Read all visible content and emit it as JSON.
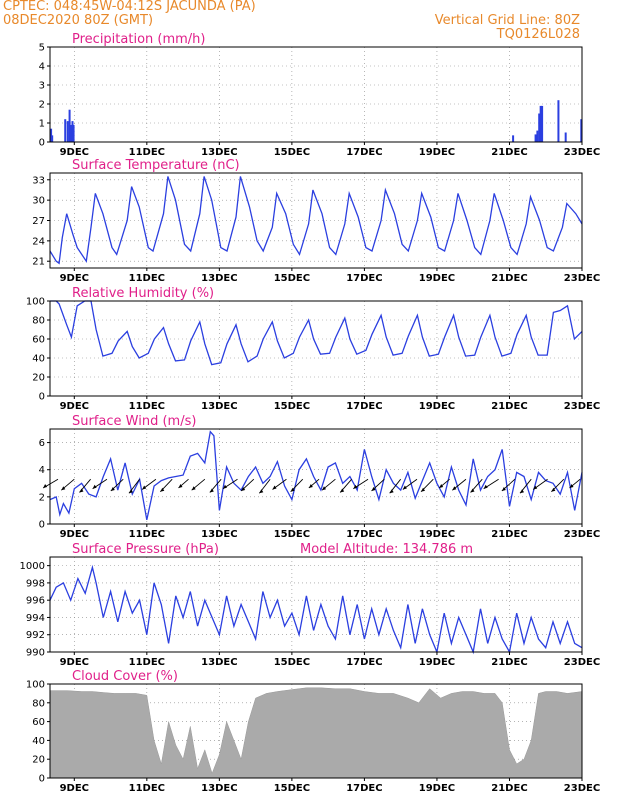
{
  "header": {
    "line1_left": "CPTEC:   048:45W-04:12S   JACUNDA (PA)",
    "line2_left": "08DEC2020 80Z (GMT)",
    "line2_right": "Vertical Grid Line: 80Z",
    "line3_right": "TQ0126L028"
  },
  "colors": {
    "header": "#e8892b",
    "title": "#e0208a",
    "series": "#2b3fe0",
    "cloud": "#aaaaaa",
    "grid": "#888888"
  },
  "x_axis": {
    "tick_labels": [
      "9DEC",
      "11DEC",
      "13DEC",
      "15DEC",
      "17DEC",
      "19DEC",
      "21DEC",
      "23DEC"
    ],
    "day_start": 8.33,
    "day_end": 23.0
  },
  "chart_data": [
    {
      "type": "bar",
      "title": "Precipitation (mm/h)",
      "ylim": [
        0,
        5
      ],
      "yticks": [
        0,
        1,
        2,
        3,
        4,
        5
      ],
      "series": [
        {
          "x": [
            8.36,
            8.39,
            8.75,
            8.82,
            8.87,
            8.9,
            8.95,
            8.98,
            21.1,
            21.72,
            21.77,
            21.82,
            21.86,
            21.9,
            22.35,
            22.55,
            22.98
          ],
          "values": [
            0.7,
            0.35,
            1.2,
            1.1,
            1.7,
            0.9,
            1.1,
            0.9,
            0.35,
            0.4,
            0.6,
            1.5,
            1.9,
            1.9,
            2.2,
            0.5,
            1.2
          ]
        }
      ]
    },
    {
      "type": "line",
      "title": "Surface Temperature (nC)",
      "ylim": [
        20,
        34
      ],
      "yticks": [
        21,
        24,
        27,
        30,
        33
      ],
      "series": [
        {
          "x": [
            8.33,
            8.5,
            8.58,
            8.67,
            8.79,
            8.96,
            9.08,
            9.33,
            9.46,
            9.58,
            9.79,
            10.04,
            10.17,
            10.46,
            10.58,
            10.79,
            11.04,
            11.17,
            11.46,
            11.58,
            11.79,
            12.04,
            12.21,
            12.46,
            12.58,
            12.79,
            13.04,
            13.21,
            13.46,
            13.58,
            13.83,
            14.04,
            14.21,
            14.46,
            14.58,
            14.83,
            15.04,
            15.21,
            15.46,
            15.58,
            15.83,
            16.04,
            16.21,
            16.46,
            16.58,
            16.83,
            17.04,
            17.21,
            17.46,
            17.58,
            17.83,
            18.04,
            18.21,
            18.46,
            18.58,
            18.83,
            19.04,
            19.21,
            19.46,
            19.58,
            19.83,
            20.04,
            20.21,
            20.46,
            20.58,
            20.83,
            21.04,
            21.21,
            21.46,
            21.58,
            21.83,
            22.04,
            22.21,
            22.46,
            22.58,
            22.83,
            23.0
          ],
          "values": [
            22.5,
            21.0,
            20.7,
            24.5,
            28.0,
            25.0,
            23.0,
            21.0,
            26.0,
            31.0,
            28.0,
            23.0,
            22.0,
            27.0,
            32.0,
            29.0,
            23.0,
            22.5,
            28.0,
            33.5,
            30.0,
            23.5,
            22.5,
            28.0,
            33.5,
            30.0,
            23.0,
            22.5,
            27.5,
            33.5,
            29.0,
            24.0,
            22.5,
            26.0,
            31.0,
            28.0,
            23.5,
            22.0,
            26.5,
            31.5,
            28.0,
            23.0,
            22.0,
            26.5,
            31.0,
            27.5,
            23.0,
            22.5,
            27.0,
            31.5,
            28.0,
            23.5,
            22.5,
            27.0,
            31.0,
            27.5,
            23.0,
            22.5,
            27.0,
            31.0,
            27.0,
            23.0,
            22.0,
            27.0,
            31.0,
            27.0,
            23.0,
            22.0,
            26.5,
            30.5,
            27.0,
            23.0,
            22.5,
            26.0,
            29.5,
            28.0,
            26.5
          ]
        }
      ]
    },
    {
      "type": "line",
      "title": "Relative Humidity (%)",
      "ylim": [
        0,
        100
      ],
      "yticks": [
        0,
        20,
        40,
        60,
        80,
        100
      ],
      "series": [
        {
          "x": [
            8.33,
            8.5,
            8.58,
            8.79,
            8.92,
            9.08,
            9.29,
            9.46,
            9.6,
            9.79,
            10.04,
            10.21,
            10.46,
            10.6,
            10.79,
            11.04,
            11.21,
            11.46,
            11.6,
            11.79,
            12.04,
            12.21,
            12.46,
            12.6,
            12.79,
            13.04,
            13.21,
            13.46,
            13.6,
            13.79,
            14.04,
            14.21,
            14.46,
            14.6,
            14.79,
            15.04,
            15.21,
            15.46,
            15.6,
            15.79,
            16.04,
            16.21,
            16.46,
            16.6,
            16.79,
            17.04,
            17.21,
            17.46,
            17.6,
            17.79,
            18.04,
            18.21,
            18.46,
            18.6,
            18.79,
            19.04,
            19.21,
            19.46,
            19.6,
            19.79,
            20.04,
            20.21,
            20.46,
            20.6,
            20.79,
            21.04,
            21.21,
            21.46,
            21.6,
            21.79,
            22.04,
            22.21,
            22.4,
            22.6,
            22.79,
            23.0
          ],
          "values": [
            100,
            100,
            97,
            75,
            62,
            95,
            100,
            100,
            70,
            42,
            45,
            58,
            68,
            52,
            40,
            45,
            60,
            72,
            55,
            37,
            38,
            58,
            78,
            55,
            33,
            35,
            55,
            75,
            55,
            36,
            42,
            60,
            78,
            58,
            40,
            45,
            62,
            80,
            60,
            44,
            45,
            62,
            82,
            60,
            44,
            48,
            65,
            85,
            62,
            43,
            45,
            63,
            85,
            62,
            42,
            44,
            62,
            85,
            62,
            42,
            43,
            62,
            85,
            62,
            42,
            45,
            65,
            85,
            62,
            43,
            43,
            88,
            90,
            95,
            60,
            68
          ]
        }
      ]
    },
    {
      "type": "line",
      "title": "Surface Wind (m/s)",
      "ylim": [
        0,
        7
      ],
      "yticks": [
        0,
        2,
        4,
        6
      ],
      "series": [
        {
          "x": [
            8.33,
            8.5,
            8.6,
            8.7,
            8.85,
            9.0,
            9.2,
            9.4,
            9.6,
            9.8,
            10.0,
            10.2,
            10.4,
            10.6,
            10.8,
            11.0,
            11.2,
            11.4,
            11.6,
            11.8,
            12.0,
            12.2,
            12.4,
            12.6,
            12.75,
            12.85,
            13.0,
            13.2,
            13.4,
            13.6,
            13.8,
            14.0,
            14.2,
            14.4,
            14.6,
            14.8,
            15.0,
            15.2,
            15.4,
            15.6,
            15.8,
            16.0,
            16.2,
            16.4,
            16.6,
            16.8,
            17.0,
            17.2,
            17.4,
            17.6,
            17.8,
            18.0,
            18.2,
            18.4,
            18.6,
            18.8,
            19.0,
            19.2,
            19.4,
            19.6,
            19.8,
            20.0,
            20.2,
            20.4,
            20.6,
            20.8,
            21.0,
            21.2,
            21.4,
            21.6,
            21.8,
            22.0,
            22.2,
            22.4,
            22.6,
            22.8,
            23.0
          ],
          "values": [
            1.8,
            2.0,
            0.7,
            1.5,
            0.8,
            2.6,
            3.0,
            2.2,
            2.0,
            3.5,
            4.8,
            2.5,
            4.5,
            2.2,
            3.3,
            0.3,
            2.8,
            3.2,
            3.4,
            3.5,
            3.6,
            5.0,
            5.2,
            4.5,
            6.8,
            6.5,
            1.0,
            4.2,
            3.0,
            2.5,
            3.5,
            4.2,
            3.0,
            3.5,
            4.6,
            2.8,
            1.8,
            4.0,
            4.8,
            3.5,
            2.5,
            4.2,
            4.5,
            3.0,
            3.5,
            2.5,
            5.5,
            3.5,
            1.8,
            4.0,
            3.0,
            2.5,
            3.8,
            1.9,
            3.2,
            4.5,
            3.0,
            2.0,
            4.2,
            2.5,
            1.4,
            4.8,
            2.5,
            3.5,
            4.0,
            5.5,
            1.3,
            3.8,
            3.5,
            1.8,
            3.8,
            3.2,
            3.0,
            2.2,
            3.8,
            1.0,
            3.8
          ]
        }
      ]
    },
    {
      "type": "line",
      "title": "Surface Pressure (hPa)",
      "annotation": "Model Altitude: 134.786 m",
      "ylim": [
        990,
        1001
      ],
      "yticks": [
        990,
        992,
        994,
        996,
        998,
        1000
      ],
      "series": [
        {
          "x": [
            8.33,
            8.5,
            8.7,
            8.9,
            9.1,
            9.3,
            9.5,
            9.6,
            9.8,
            10.0,
            10.2,
            10.4,
            10.6,
            10.8,
            11.0,
            11.2,
            11.4,
            11.6,
            11.8,
            12.0,
            12.2,
            12.4,
            12.6,
            12.8,
            13.0,
            13.2,
            13.4,
            13.6,
            13.8,
            14.0,
            14.2,
            14.4,
            14.6,
            14.8,
            15.0,
            15.2,
            15.4,
            15.6,
            15.8,
            16.0,
            16.2,
            16.4,
            16.6,
            16.8,
            17.0,
            17.2,
            17.4,
            17.6,
            17.8,
            18.0,
            18.2,
            18.4,
            18.6,
            18.8,
            19.0,
            19.2,
            19.4,
            19.6,
            19.8,
            20.0,
            20.2,
            20.4,
            20.6,
            20.8,
            21.0,
            21.2,
            21.4,
            21.6,
            21.8,
            22.0,
            22.2,
            22.4,
            22.6,
            22.8,
            23.0
          ],
          "values": [
            996.0,
            997.5,
            998.0,
            996.0,
            998.5,
            996.8,
            999.8,
            998.0,
            994.0,
            997.0,
            993.5,
            997.0,
            994.5,
            996.0,
            992.0,
            998.0,
            995.5,
            991.0,
            996.5,
            994.0,
            997.0,
            993.0,
            996.0,
            994.0,
            992.0,
            996.5,
            993.0,
            995.5,
            993.5,
            991.5,
            997.0,
            994.0,
            996.0,
            993.0,
            994.5,
            992.0,
            996.5,
            992.5,
            995.5,
            993.0,
            991.5,
            996.5,
            992.0,
            995.5,
            991.5,
            995.0,
            992.0,
            995.0,
            992.5,
            990.5,
            995.5,
            991.0,
            995.0,
            992.0,
            990.0,
            994.5,
            991.0,
            994.0,
            992.0,
            990.0,
            995.0,
            991.0,
            994.0,
            991.5,
            990.0,
            994.5,
            991.0,
            994.0,
            991.5,
            990.5,
            993.5,
            991.0,
            993.5,
            991.0,
            990.5
          ]
        }
      ]
    },
    {
      "type": "area",
      "title": "Cloud Cover (%)",
      "ylim": [
        0,
        100
      ],
      "yticks": [
        0,
        20,
        40,
        60,
        80,
        100
      ],
      "series": [
        {
          "x": [
            8.33,
            8.8,
            9.2,
            9.5,
            9.8,
            10.1,
            10.4,
            10.7,
            11.0,
            11.2,
            11.4,
            11.6,
            11.8,
            12.0,
            12.2,
            12.4,
            12.6,
            12.8,
            13.0,
            13.2,
            13.4,
            13.6,
            13.8,
            14.0,
            14.3,
            14.6,
            15.0,
            15.4,
            15.8,
            16.2,
            16.6,
            17.0,
            17.4,
            17.8,
            18.2,
            18.5,
            18.8,
            19.1,
            19.4,
            19.7,
            20.0,
            20.3,
            20.6,
            20.8,
            21.0,
            21.2,
            21.4,
            21.6,
            21.8,
            22.0,
            22.3,
            22.6,
            23.0
          ],
          "values": [
            93,
            93,
            92,
            92,
            91,
            90,
            90,
            90,
            88,
            40,
            15,
            60,
            35,
            20,
            55,
            10,
            30,
            5,
            25,
            60,
            40,
            20,
            60,
            85,
            90,
            92,
            94,
            96,
            96,
            95,
            95,
            92,
            90,
            90,
            85,
            80,
            95,
            85,
            90,
            92,
            92,
            90,
            90,
            80,
            30,
            15,
            20,
            40,
            90,
            92,
            92,
            90,
            92
          ]
        }
      ]
    }
  ]
}
